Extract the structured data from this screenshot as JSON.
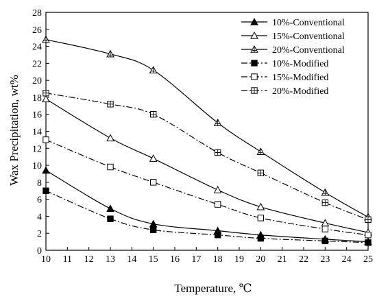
{
  "chart_data": {
    "type": "line",
    "xlabel": "Temperature, ℃",
    "ylabel": "Wax Precipitation, wt%",
    "xlim": [
      10,
      25
    ],
    "ylim": [
      0,
      28
    ],
    "xticks": [
      10,
      11,
      12,
      13,
      14,
      15,
      16,
      17,
      18,
      19,
      20,
      21,
      22,
      23,
      24,
      25
    ],
    "yticks": [
      0,
      2,
      4,
      6,
      8,
      10,
      12,
      14,
      16,
      18,
      20,
      22,
      24,
      26,
      28
    ],
    "grid": false,
    "legend_position": "top-right",
    "series": [
      {
        "name": "10%-Conventional",
        "marker": "filled-triangle",
        "line": "solid",
        "x": [
          10,
          13,
          15,
          18,
          20,
          23,
          25
        ],
        "y": [
          9.4,
          4.9,
          3.1,
          2.3,
          1.8,
          1.3,
          1.0
        ]
      },
      {
        "name": "15%-Conventional",
        "marker": "open-triangle",
        "line": "solid",
        "x": [
          10,
          13,
          15,
          18,
          20,
          23,
          25
        ],
        "y": [
          17.8,
          13.2,
          10.8,
          7.1,
          5.1,
          3.2,
          2.1
        ]
      },
      {
        "name": "20%-Conventional",
        "marker": "crossed-triangle",
        "line": "solid",
        "x": [
          10,
          13,
          15,
          18,
          20,
          23,
          25
        ],
        "y": [
          24.8,
          23.1,
          21.2,
          15.0,
          11.6,
          6.8,
          3.9
        ]
      },
      {
        "name": "10%-Modified",
        "marker": "filled-square",
        "line": "dash-dot",
        "x": [
          10,
          13,
          15,
          18,
          20,
          23,
          25
        ],
        "y": [
          7.0,
          3.7,
          2.4,
          1.8,
          1.4,
          1.1,
          0.9
        ]
      },
      {
        "name": "15%-Modified",
        "marker": "open-square",
        "line": "dash-dot",
        "x": [
          10,
          13,
          15,
          18,
          20,
          23,
          25
        ],
        "y": [
          13.0,
          9.8,
          8.0,
          5.4,
          3.8,
          2.5,
          1.8
        ]
      },
      {
        "name": "20%-Modified",
        "marker": "crossed-square",
        "line": "dash-dot",
        "x": [
          10,
          13,
          15,
          18,
          20,
          23,
          25
        ],
        "y": [
          18.5,
          17.2,
          16.0,
          11.5,
          9.1,
          5.6,
          3.6
        ]
      }
    ]
  }
}
